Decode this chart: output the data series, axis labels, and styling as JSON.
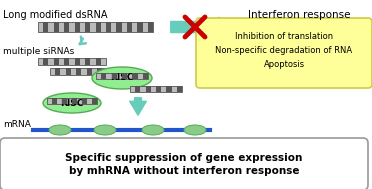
{
  "bg_color": "#ffffff",
  "title_text": "Long modified dsRNA",
  "sirna_text": "multiple siRNAs",
  "mrna_text": "mRNA",
  "interferon_text": "Interferon response",
  "box_lines": [
    "Inhibition of translation",
    "Non-specific degradation of RNA",
    "Apoptosis"
  ],
  "bottom_text_line1": "Specific suppression of gene expression",
  "bottom_text_line2": "by mhRNA without interferon response",
  "risc_color": "#90ee90",
  "risc_edge": "#55aa55",
  "arrow_color": "#66ccbb",
  "red_x_color": "#cc0000",
  "rna_color1": "#bbbbbb",
  "rna_color2": "#555555",
  "mrna_line_color": "#2255cc",
  "mrna_risc_color": "#88cc88",
  "yellow_box_color": "#ffff99",
  "yellow_box_edge": "#cccc44",
  "bottom_box_color": "#ffffff",
  "bottom_box_edge": "#999999"
}
